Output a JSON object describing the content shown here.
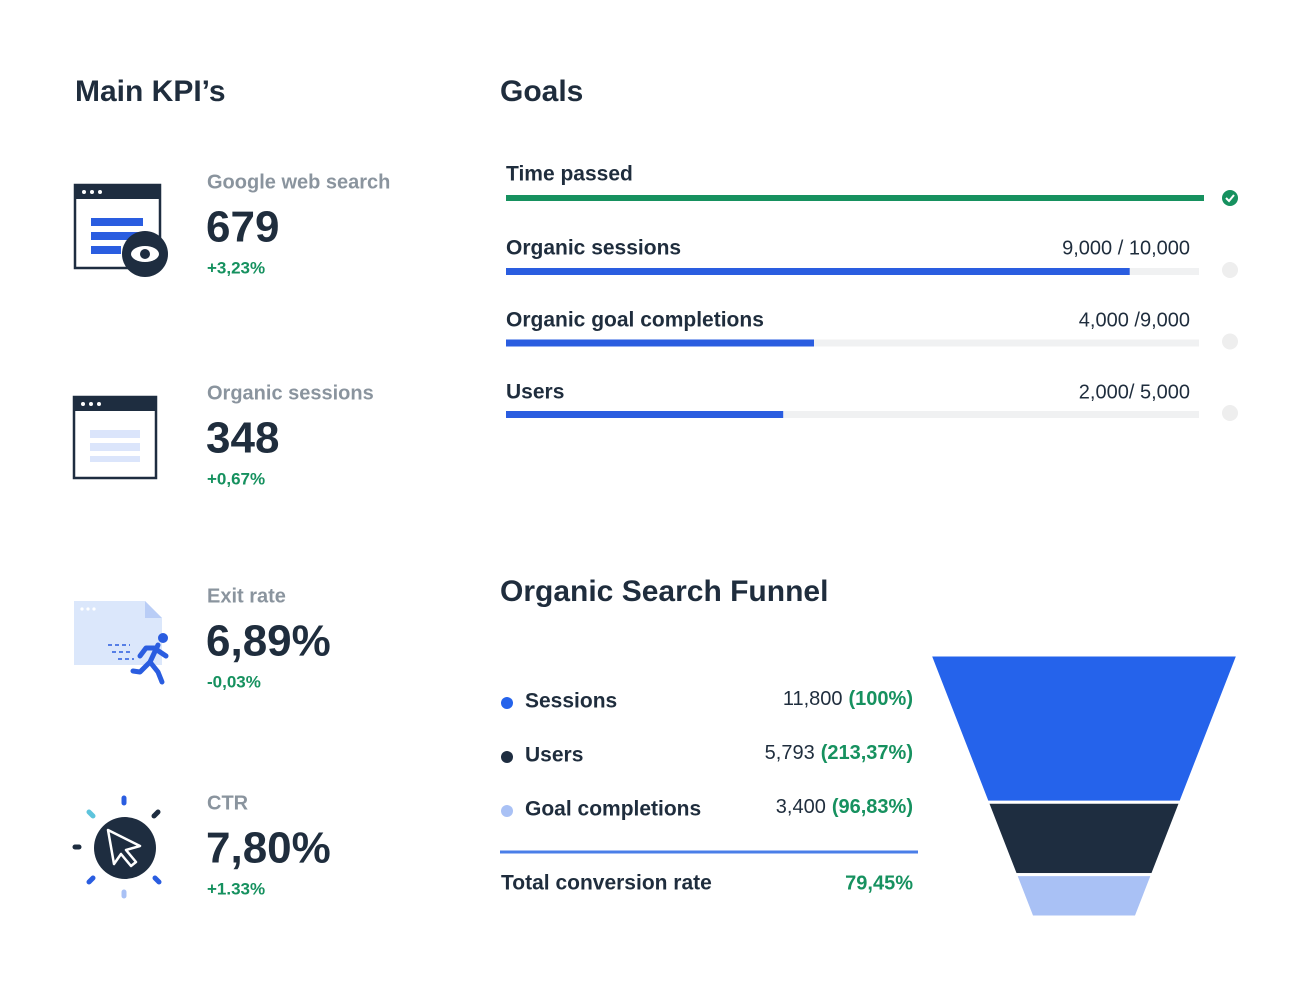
{
  "kpis": {
    "title": "Main KPI’s",
    "items": [
      {
        "label": "Google web search",
        "value": "679",
        "change": "+3,23%"
      },
      {
        "label": "Organic sessions",
        "value": "348",
        "change": "+0,67%"
      },
      {
        "label": "Exit rate",
        "value": "6,89%",
        "change": "-0,03%"
      },
      {
        "label": "CTR",
        "value": "7,80%",
        "change": "+1.33%"
      }
    ]
  },
  "goals": {
    "title": "Goals",
    "done_color": "#16915f",
    "bar_color": "#2a5de0",
    "time_passed": {
      "label": "Time passed"
    },
    "items": [
      {
        "label": "Organic sessions",
        "progress_text": "9,000 / 10,000",
        "current": 9000,
        "target": 10000
      },
      {
        "label": "Organic goal completions",
        "progress_text": "4,000 /9,000",
        "current": 4000,
        "target": 9000
      },
      {
        "label": "Users",
        "progress_text": "2,000/ 5,000",
        "current": 2000,
        "target": 5000
      }
    ]
  },
  "funnel": {
    "title": "Organic Search Funnel",
    "stages": [
      {
        "label": "Sessions",
        "value": 11800,
        "value_label": "11,800",
        "share": "(100%)",
        "color": "#2563eb"
      },
      {
        "label": "Users",
        "value": 5793,
        "value_label": "5,793",
        "share": "(213,37%)",
        "color": "#1e2d40"
      },
      {
        "label": "Goal completions",
        "value": 3400,
        "value_label": "3,400",
        "share": "(96,83%)",
        "color": "#a9c1f5"
      }
    ],
    "total": {
      "label": "Total conversion rate",
      "value": "79,45%"
    }
  }
}
